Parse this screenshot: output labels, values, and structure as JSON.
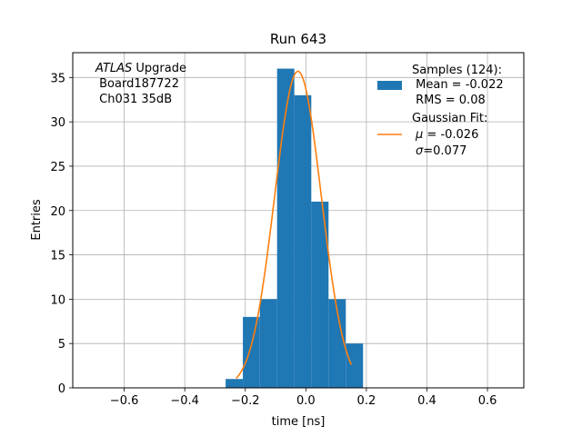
{
  "chart_data": {
    "type": "bar",
    "title": "Run 643",
    "xlabel": "time [ns]",
    "ylabel": "Entries",
    "xlim": [
      -0.77,
      0.72
    ],
    "ylim": [
      0,
      37.8
    ],
    "grid": true,
    "xticks": [
      -0.6,
      -0.4,
      -0.2,
      0.0,
      0.2,
      0.4,
      0.6
    ],
    "xtick_labels": [
      "−0.6",
      "−0.4",
      "−0.2",
      "0.0",
      "0.2",
      "0.4",
      "0.6"
    ],
    "yticks": [
      0,
      5,
      10,
      15,
      20,
      25,
      30,
      35
    ],
    "ytick_labels": [
      "0",
      "5",
      "10",
      "15",
      "20",
      "25",
      "30",
      "35"
    ],
    "histogram": {
      "name": "Samples (124):",
      "color": "#1f77b4",
      "bins": [
        {
          "x0": -0.265,
          "x1": -0.208,
          "count": 1
        },
        {
          "x0": -0.208,
          "x1": -0.152,
          "count": 8
        },
        {
          "x0": -0.152,
          "x1": -0.095,
          "count": 10
        },
        {
          "x0": -0.095,
          "x1": -0.038,
          "count": 36
        },
        {
          "x0": -0.038,
          "x1": 0.018,
          "count": 33
        },
        {
          "x0": 0.018,
          "x1": 0.075,
          "count": 21
        },
        {
          "x0": 0.075,
          "x1": 0.132,
          "count": 10
        },
        {
          "x0": 0.132,
          "x1": 0.189,
          "count": 5
        }
      ]
    },
    "fit": {
      "name": "Gaussian Fit:",
      "color": "#ff7f0e",
      "type": "gaussian",
      "mu": -0.026,
      "sigma": 0.077,
      "amplitude": 35.7,
      "x_range": [
        -0.23,
        0.15
      ]
    },
    "annotation": {
      "line1_italic": "ATLAS",
      "line1_rest": " Upgrade",
      "line2": " Board187722",
      "line3": " Ch031 35dB"
    },
    "legend": {
      "placement": "top-right",
      "samples_title": "Samples (124):",
      "samples_line1": " Mean = -0.022",
      "samples_line2": " RMS = 0.08",
      "fit_title": "Gaussian Fit:",
      "fit_mu_symbol": "μ",
      "fit_mu_rest": " = -0.026",
      "fit_sigma_symbol": "σ",
      "fit_sigma_rest": "=0.077"
    }
  }
}
